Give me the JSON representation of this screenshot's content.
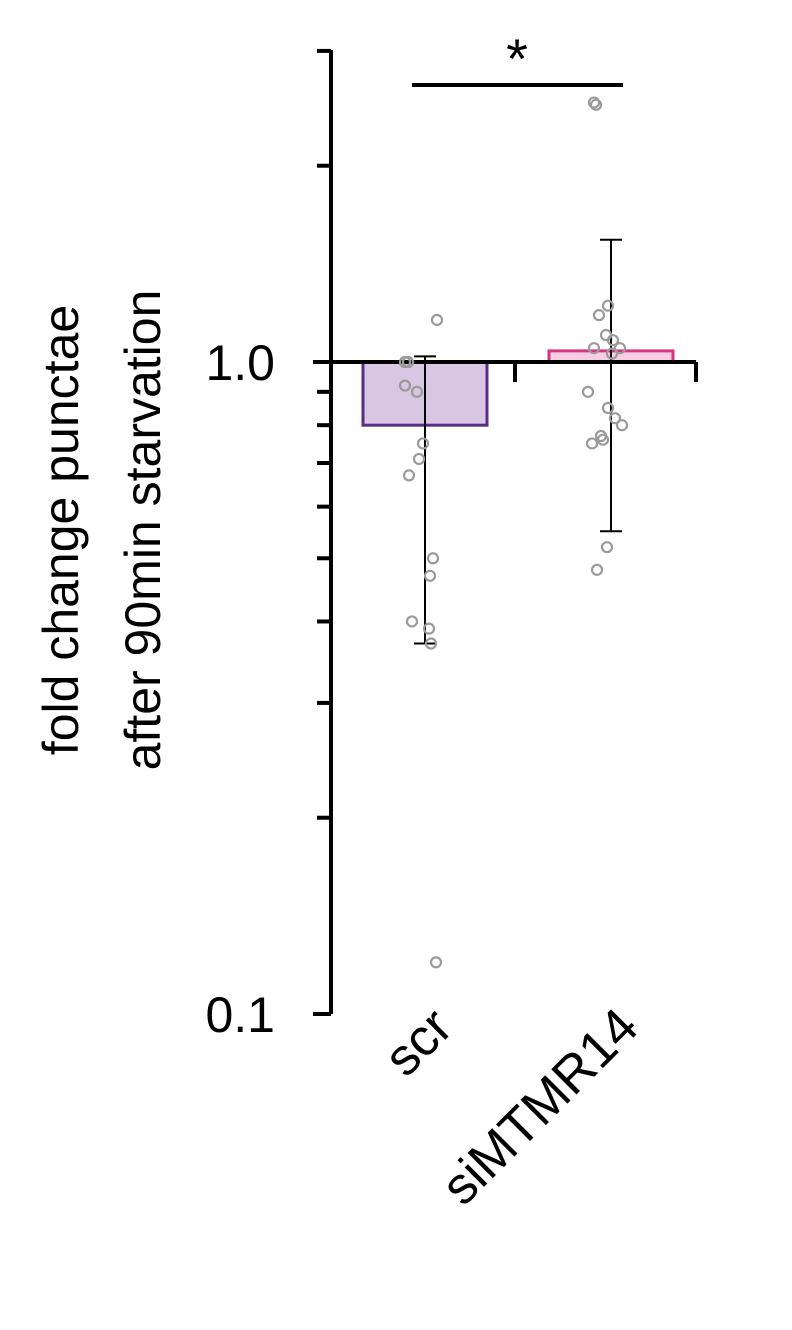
{
  "chart_data": {
    "type": "bar",
    "ylabel_lines": [
      "fold change punctae",
      "after 90min starvation"
    ],
    "y_scale": "log",
    "ylim": [
      0.1,
      4
    ],
    "y_ticks": [
      {
        "value": 0.1,
        "label": "0.1"
      },
      {
        "value": 1.0,
        "label": "1.0"
      }
    ],
    "y_minor_ticks": [
      0.2,
      0.3,
      0.4,
      0.5,
      0.6,
      0.7,
      0.8,
      0.9,
      2,
      3,
      4
    ],
    "categories": [
      "scr",
      "siMTMR14"
    ],
    "values": [
      0.8,
      1.04
    ],
    "error": [
      {
        "low": 0.37,
        "high": 1.02
      },
      {
        "low": 0.55,
        "high": 1.54
      }
    ],
    "points": [
      [
        1.16,
        1.0,
        1.0,
        0.92,
        0.9,
        0.75,
        0.71,
        0.67,
        0.5,
        0.4,
        0.39,
        0.37,
        0.47,
        0.12
      ],
      [
        2.5,
        2.48,
        1.05,
        1.18,
        1.1,
        1.08,
        1.05,
        1.03,
        0.9,
        0.85,
        0.82,
        0.8,
        0.77,
        0.75,
        0.76,
        0.52,
        0.48,
        1.22
      ]
    ],
    "colors": {
      "bar_fill": [
        "#d8c6e2",
        "#f7cde3"
      ],
      "bar_edge": [
        "#5a2d87",
        "#d4377f"
      ],
      "point_edge": "#9a9a9a",
      "axis": "#000000"
    },
    "significance": {
      "label": "*",
      "between": [
        0,
        1
      ]
    },
    "grid": false,
    "legend": "none"
  }
}
